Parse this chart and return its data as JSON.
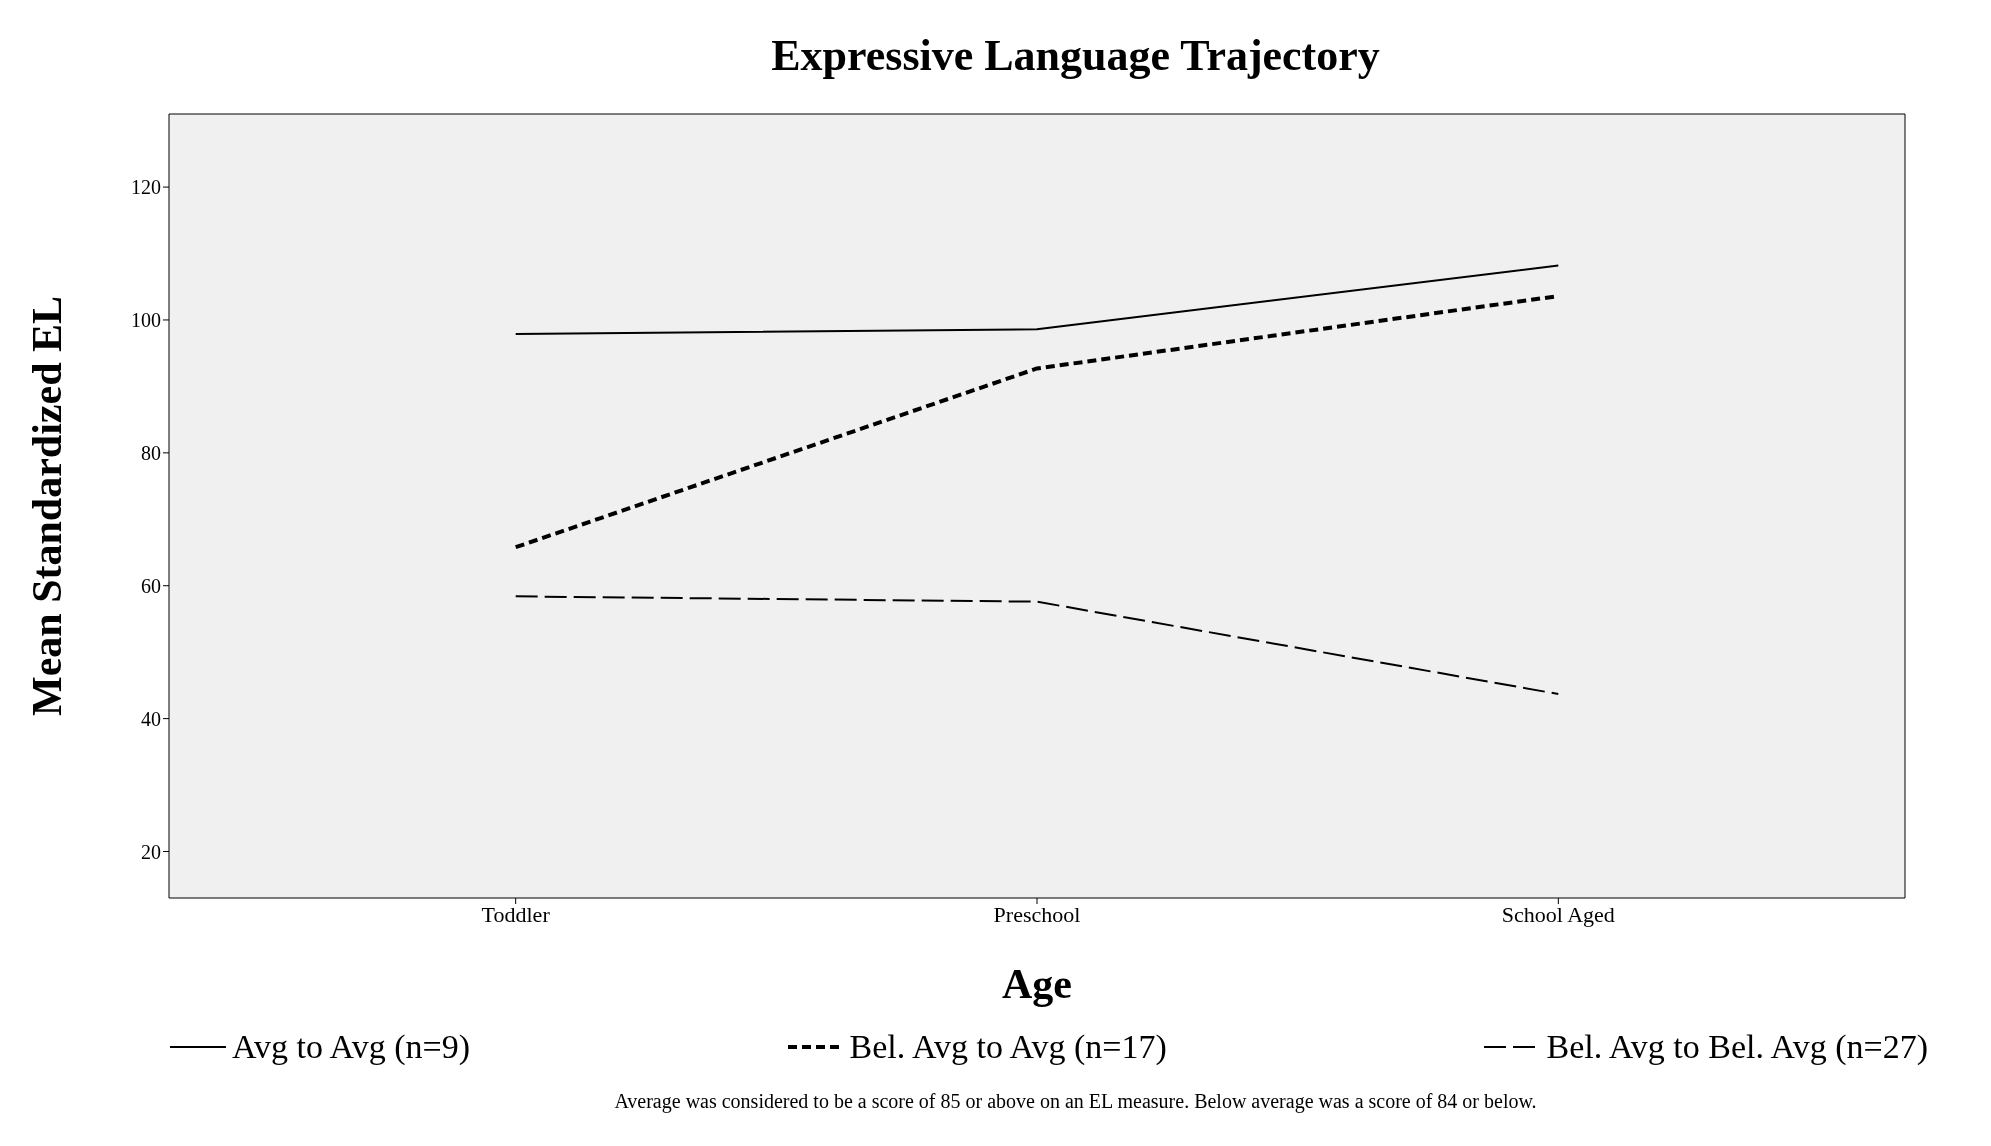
{
  "chart_data": {
    "type": "line",
    "title": "Expressive Language Trajectory",
    "xlabel": "Age",
    "ylabel": "Mean Standardized EL",
    "categories": [
      "Toddler",
      "Preschool",
      "School Aged"
    ],
    "series": [
      {
        "name": "Avg to Avg (n=9)",
        "color": "#000000",
        "line_style": "solid",
        "values": [
          97.9,
          98.6,
          108.2
        ]
      },
      {
        "name": "Bel. Avg to Avg (n=17)",
        "color": "#000000",
        "line_style": "dotted",
        "values": [
          65.8,
          92.7,
          103.6
        ]
      },
      {
        "name": "Bel. Avg to Bel. Avg (n=27)",
        "color": "#000000",
        "line_style": "dashed",
        "values": [
          58.4,
          57.6,
          43.7
        ]
      }
    ],
    "ylim": [
      13,
      131
    ],
    "yticks": [
      20,
      40,
      60,
      80,
      100,
      120
    ],
    "grid": false,
    "legend": "bottom",
    "marker": "none",
    "annotations": [
      "Average was considered to be a score of 85 or above on an EL measure. Below average was a score of 84 or below."
    ]
  }
}
